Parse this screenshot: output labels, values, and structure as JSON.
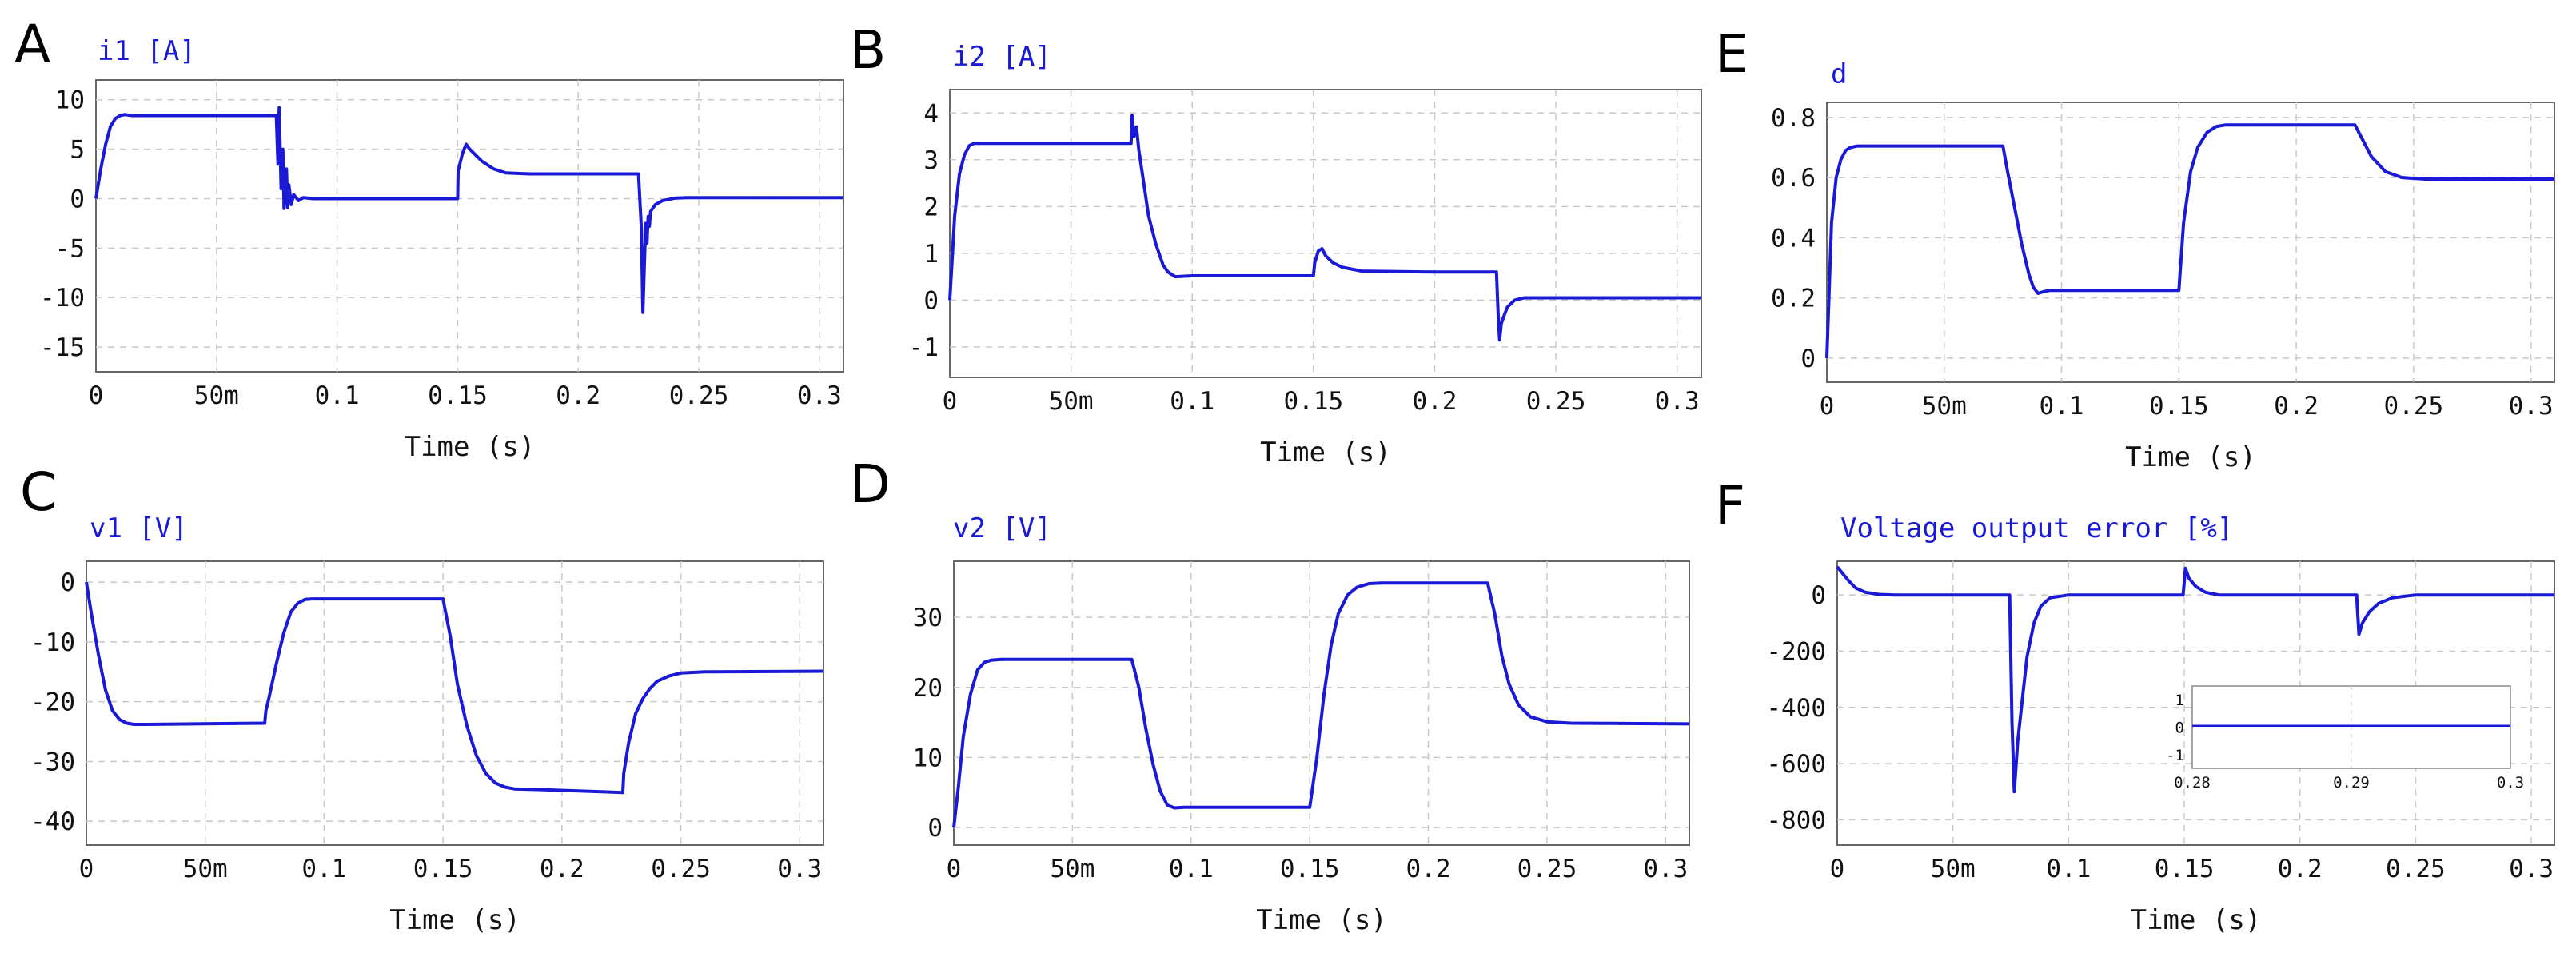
{
  "chart_data": [
    {
      "id": "A",
      "panel_label": "A",
      "type": "line",
      "title": "i1 [A]",
      "xlabel": "Time (s)",
      "ylabel": "",
      "xlim": [
        0,
        0.31
      ],
      "ylim": [
        -17.5,
        12
      ],
      "xticks": [
        0,
        0.05,
        0.1,
        0.15,
        0.2,
        0.25,
        0.3
      ],
      "xtick_labels": [
        "0",
        "50m",
        "0.1",
        "0.15",
        "0.2",
        "0.25",
        "0.3"
      ],
      "yticks": [
        10,
        5,
        0,
        -5,
        -10,
        -15
      ],
      "ytick_labels": [
        "10",
        "5",
        "0",
        "-5",
        "-10",
        "-15"
      ],
      "grid": true,
      "series": [
        {
          "name": "i1",
          "color": "#1a1ad6",
          "x": [
            0,
            0.002,
            0.004,
            0.006,
            0.008,
            0.01,
            0.012,
            0.015,
            0.02,
            0.05,
            0.0748,
            0.0755,
            0.076,
            0.0768,
            0.0775,
            0.078,
            0.079,
            0.0795,
            0.08,
            0.081,
            0.082,
            0.084,
            0.086,
            0.09,
            0.1,
            0.15,
            0.1502,
            0.152,
            0.1535,
            0.155,
            0.16,
            0.165,
            0.17,
            0.18,
            0.2,
            0.225,
            0.2262,
            0.2268,
            0.2275,
            0.228,
            0.2285,
            0.229,
            0.2295,
            0.23,
            0.232,
            0.235,
            0.24,
            0.245,
            0.25,
            0.26,
            0.27,
            0.31
          ],
          "y": [
            0,
            3,
            5.5,
            7.3,
            8.1,
            8.4,
            8.5,
            8.4,
            8.4,
            8.4,
            8.4,
            3.5,
            9.2,
            1.0,
            5.0,
            -1.0,
            3.0,
            -0.9,
            1.4,
            -0.6,
            0.4,
            -0.2,
            0.1,
            0,
            0,
            0,
            2.8,
            4.6,
            5.5,
            5.0,
            3.8,
            3.0,
            2.6,
            2.5,
            2.5,
            2.5,
            -3.0,
            -11.5,
            -6.0,
            -2.5,
            -4.5,
            -1.8,
            -2.8,
            -1.3,
            -0.6,
            -0.2,
            0.05,
            0.1,
            0.1,
            0.1,
            0.1,
            0.1
          ]
        }
      ]
    },
    {
      "id": "B",
      "panel_label": "B",
      "type": "line",
      "title": "i2 [A]",
      "xlabel": "Time (s)",
      "ylabel": "",
      "xlim": [
        0,
        0.31
      ],
      "ylim": [
        -1.65,
        4.5
      ],
      "xticks": [
        0,
        0.05,
        0.1,
        0.15,
        0.2,
        0.25,
        0.3
      ],
      "xtick_labels": [
        "0",
        "50m",
        "0.1",
        "0.15",
        "0.2",
        "0.25",
        "0.3"
      ],
      "yticks": [
        4,
        3,
        2,
        1,
        0,
        -1
      ],
      "ytick_labels": [
        "4",
        "3",
        "2",
        "1",
        "0",
        "-1"
      ],
      "grid": true,
      "series": [
        {
          "name": "i2",
          "color": "#1a1ad6",
          "x": [
            0,
            0.002,
            0.004,
            0.006,
            0.008,
            0.01,
            0.012,
            0.015,
            0.05,
            0.0748,
            0.0752,
            0.076,
            0.077,
            0.078,
            0.08,
            0.082,
            0.085,
            0.088,
            0.09,
            0.093,
            0.1,
            0.12,
            0.15,
            0.1505,
            0.152,
            0.1535,
            0.155,
            0.158,
            0.162,
            0.17,
            0.2,
            0.2255,
            0.2262,
            0.2268,
            0.2275,
            0.2285,
            0.23,
            0.233,
            0.237,
            0.245,
            0.31
          ],
          "y": [
            0,
            1.8,
            2.7,
            3.1,
            3.3,
            3.35,
            3.35,
            3.35,
            3.35,
            3.35,
            3.95,
            3.5,
            3.7,
            3.2,
            2.5,
            1.8,
            1.2,
            0.75,
            0.6,
            0.5,
            0.52,
            0.52,
            0.52,
            0.8,
            1.05,
            1.1,
            0.95,
            0.8,
            0.7,
            0.62,
            0.6,
            0.6,
            -0.3,
            -0.85,
            -0.5,
            -0.35,
            -0.15,
            0,
            0.05,
            0.05,
            0.05
          ]
        }
      ]
    },
    {
      "id": "E",
      "panel_label": "E",
      "type": "line",
      "title": "d",
      "xlabel": "Time (s)",
      "ylabel": "",
      "xlim": [
        0,
        0.31
      ],
      "ylim": [
        -0.08,
        0.85
      ],
      "xticks": [
        0,
        0.05,
        0.1,
        0.15,
        0.2,
        0.25,
        0.3
      ],
      "xtick_labels": [
        "0",
        "50m",
        "0.1",
        "0.15",
        "0.2",
        "0.25",
        "0.3"
      ],
      "yticks": [
        0.8,
        0.6,
        0.4,
        0.2,
        0
      ],
      "ytick_labels": [
        "0.8",
        "0.6",
        "0.4",
        "0.2",
        "0"
      ],
      "grid": true,
      "series": [
        {
          "name": "d",
          "color": "#1a1ad6",
          "x": [
            0,
            0.002,
            0.004,
            0.006,
            0.008,
            0.01,
            0.013,
            0.02,
            0.075,
            0.077,
            0.08,
            0.083,
            0.086,
            0.088,
            0.09,
            0.092,
            0.095,
            0.1,
            0.15,
            0.152,
            0.155,
            0.158,
            0.162,
            0.166,
            0.17,
            0.18,
            0.225,
            0.228,
            0.232,
            0.238,
            0.245,
            0.255,
            0.31
          ],
          "y": [
            0,
            0.45,
            0.6,
            0.66,
            0.69,
            0.7,
            0.705,
            0.705,
            0.705,
            0.62,
            0.5,
            0.38,
            0.28,
            0.235,
            0.215,
            0.22,
            0.225,
            0.225,
            0.225,
            0.45,
            0.62,
            0.7,
            0.75,
            0.77,
            0.775,
            0.775,
            0.775,
            0.73,
            0.67,
            0.62,
            0.6,
            0.595,
            0.595
          ]
        }
      ]
    },
    {
      "id": "C",
      "panel_label": "C",
      "type": "line",
      "title": "v1 [V]",
      "xlabel": "Time (s)",
      "ylabel": "",
      "xlim": [
        0,
        0.31
      ],
      "ylim": [
        -44,
        3.5
      ],
      "xticks": [
        0,
        0.05,
        0.1,
        0.15,
        0.2,
        0.25,
        0.3
      ],
      "xtick_labels": [
        "0",
        "50m",
        "0.1",
        "0.15",
        "0.2",
        "0.25",
        "0.3"
      ],
      "yticks": [
        0,
        -10,
        -20,
        -30,
        -40
      ],
      "ytick_labels": [
        "0",
        "-10",
        "-20",
        "-30",
        "-40"
      ],
      "grid": true,
      "series": [
        {
          "name": "v1",
          "color": "#1a1ad6",
          "x": [
            0,
            0.002,
            0.005,
            0.008,
            0.011,
            0.014,
            0.017,
            0.02,
            0.025,
            0.075,
            0.0755,
            0.077,
            0.08,
            0.083,
            0.086,
            0.089,
            0.092,
            0.095,
            0.1,
            0.15,
            0.153,
            0.156,
            0.16,
            0.164,
            0.168,
            0.172,
            0.176,
            0.18,
            0.19,
            0.2256,
            0.226,
            0.228,
            0.231,
            0.234,
            0.237,
            0.24,
            0.245,
            0.25,
            0.26,
            0.31
          ],
          "y": [
            0,
            -5,
            -12,
            -18,
            -21.5,
            -23,
            -23.6,
            -23.8,
            -23.8,
            -23.6,
            -21.5,
            -19,
            -13.5,
            -8.5,
            -5,
            -3.5,
            -2.9,
            -2.8,
            -2.8,
            -2.8,
            -9,
            -17,
            -24,
            -29,
            -32,
            -33.6,
            -34.3,
            -34.6,
            -34.7,
            -35.2,
            -32,
            -27,
            -22,
            -19.5,
            -17.8,
            -16.6,
            -15.7,
            -15.2,
            -15,
            -14.9
          ]
        }
      ]
    },
    {
      "id": "D",
      "panel_label": "D",
      "type": "line",
      "title": "v2 [V]",
      "xlabel": "Time (s)",
      "ylabel": "",
      "xlim": [
        0,
        0.31
      ],
      "ylim": [
        -2.5,
        38
      ],
      "xticks": [
        0,
        0.05,
        0.1,
        0.15,
        0.2,
        0.25,
        0.3
      ],
      "xtick_labels": [
        "0",
        "50m",
        "0.1",
        "0.15",
        "0.2",
        "0.25",
        "0.3"
      ],
      "yticks": [
        30,
        20,
        10,
        0
      ],
      "ytick_labels": [
        "30",
        "20",
        "10",
        "0"
      ],
      "grid": true,
      "series": [
        {
          "name": "v2",
          "color": "#1a1ad6",
          "x": [
            0,
            0.002,
            0.004,
            0.007,
            0.01,
            0.013,
            0.016,
            0.02,
            0.075,
            0.078,
            0.081,
            0.084,
            0.087,
            0.09,
            0.093,
            0.097,
            0.1,
            0.15,
            0.153,
            0.156,
            0.159,
            0.162,
            0.166,
            0.17,
            0.175,
            0.18,
            0.225,
            0.228,
            0.231,
            0.234,
            0.238,
            0.243,
            0.25,
            0.26,
            0.31
          ],
          "y": [
            0,
            6,
            13,
            19,
            22.5,
            23.6,
            23.9,
            24,
            24,
            20,
            14,
            9,
            5.2,
            3.2,
            2.8,
            2.9,
            2.9,
            2.9,
            10,
            19,
            26,
            30.5,
            33.2,
            34.3,
            34.8,
            34.9,
            34.9,
            30.5,
            24.5,
            20.5,
            17.5,
            15.8,
            15.1,
            14.9,
            14.8
          ]
        }
      ]
    },
    {
      "id": "F",
      "panel_label": "F",
      "type": "line",
      "title": "Voltage output error [%]",
      "xlabel": "Time (s)",
      "ylabel": "",
      "xlim": [
        0,
        0.31
      ],
      "ylim": [
        -890,
        120
      ],
      "xticks": [
        0,
        0.05,
        0.1,
        0.15,
        0.2,
        0.25,
        0.3
      ],
      "xtick_labels": [
        "0",
        "50m",
        "0.1",
        "0.15",
        "0.2",
        "0.25",
        "0.3"
      ],
      "yticks": [
        0,
        -200,
        -400,
        -600,
        -800
      ],
      "ytick_labels": [
        "0",
        "-200",
        "-400",
        "-600",
        "-800"
      ],
      "grid": true,
      "series": [
        {
          "name": "error",
          "color": "#1a1ad6",
          "x": [
            0,
            0.002,
            0.005,
            0.008,
            0.012,
            0.018,
            0.025,
            0.0745,
            0.0755,
            0.0765,
            0.078,
            0.082,
            0.085,
            0.088,
            0.092,
            0.1,
            0.1495,
            0.1505,
            0.152,
            0.155,
            0.159,
            0.165,
            0.2245,
            0.2255,
            0.227,
            0.23,
            0.234,
            0.24,
            0.25,
            0.31
          ],
          "y": [
            100,
            80,
            50,
            25,
            10,
            2,
            0,
            0,
            -450,
            -700,
            -520,
            -220,
            -100,
            -40,
            -10,
            0,
            0,
            95,
            60,
            30,
            10,
            0,
            0,
            -140,
            -100,
            -60,
            -30,
            -10,
            0,
            0
          ]
        }
      ],
      "inset": {
        "type": "line",
        "xlim": [
          0.28,
          0.3
        ],
        "ylim": [
          -1.5,
          1.5
        ],
        "xticks": [
          0.28,
          0.29,
          0.3
        ],
        "xtick_labels": [
          "0.28",
          "0.29",
          "0.3"
        ],
        "yticks": [
          1,
          0,
          -1
        ],
        "ytick_labels": [
          "1",
          "0",
          "-1"
        ],
        "series": [
          {
            "x": [
              0.28,
              0.3
            ],
            "y": [
              0.05,
              0.05
            ]
          }
        ]
      }
    }
  ]
}
